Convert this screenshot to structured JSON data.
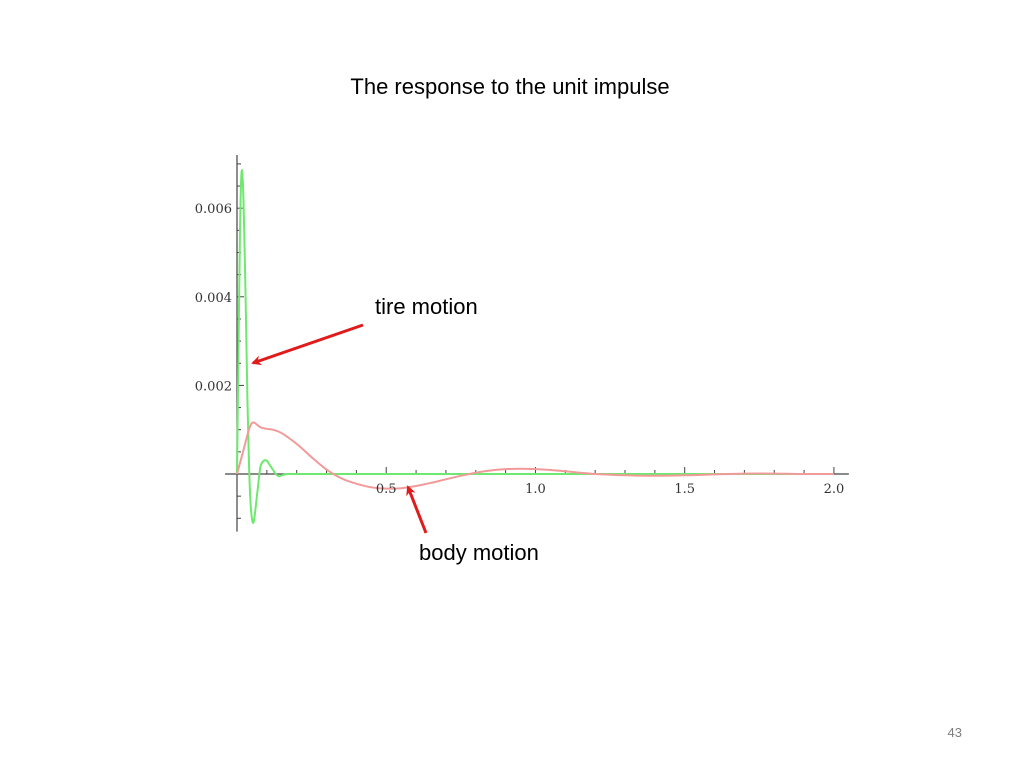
{
  "slide": {
    "title": "The response to the unit impulse",
    "page_number": "43"
  },
  "annotations": {
    "tire": "tire motion",
    "body": "body motion"
  },
  "chart_data": {
    "type": "line",
    "title": "",
    "xlabel": "",
    "ylabel": "",
    "xlim": [
      0,
      2.05
    ],
    "ylim": [
      -0.0013,
      0.0072
    ],
    "x_ticks": [
      {
        "value": 0.5,
        "label": "0.5"
      },
      {
        "value": 1.0,
        "label": "1.0"
      },
      {
        "value": 1.5,
        "label": "1.5"
      },
      {
        "value": 2.0,
        "label": "2.0"
      }
    ],
    "y_ticks": [
      {
        "value": 0.002,
        "label": "0.002"
      },
      {
        "value": 0.004,
        "label": "0.004"
      },
      {
        "value": 0.006,
        "label": "0.006"
      }
    ],
    "grid": false,
    "legend": "none",
    "series": [
      {
        "color": "#6fe86f",
        "x": [
          0,
          0.005,
          0.01,
          0.015,
          0.02,
          0.025,
          0.03,
          0.035,
          0.04,
          0.045,
          0.05,
          0.055,
          0.06,
          0.065,
          0.07,
          0.075,
          0.08,
          0.09,
          0.1,
          0.11,
          0.12,
          0.13,
          0.14,
          0.15,
          0.17,
          0.2,
          0.25,
          0.3,
          0.4,
          0.6,
          1.0,
          1.5,
          2.0
        ],
        "values": [
          0,
          0.0028,
          0.0055,
          0.0068,
          0.0065,
          0.0052,
          0.0035,
          0.0017,
          0.0003,
          -0.0006,
          -0.001,
          -0.0011,
          -0.0009,
          -0.0006,
          -0.0003,
          0.0,
          0.0002,
          0.0003,
          0.0003,
          0.0002,
          0.0001,
          0.0,
          -5e-05,
          -3e-05,
          0.0,
          0.0,
          0.0,
          0.0,
          0.0,
          0.0,
          0.0,
          0.0,
          0.0
        ]
      },
      {
        "color": "#f29a9a",
        "x": [
          0,
          0.02,
          0.04,
          0.05,
          0.06,
          0.08,
          0.1,
          0.12,
          0.15,
          0.2,
          0.25,
          0.3,
          0.35,
          0.4,
          0.45,
          0.5,
          0.55,
          0.6,
          0.65,
          0.7,
          0.75,
          0.8,
          0.85,
          0.9,
          0.95,
          1.0,
          1.05,
          1.1,
          1.15,
          1.2,
          1.3,
          1.4,
          1.5,
          1.6,
          1.7,
          1.8,
          1.9,
          2.0
        ],
        "values": [
          0,
          0.0005,
          0.001,
          0.00115,
          0.00115,
          0.00105,
          0.00102,
          0.001,
          0.00092,
          0.00068,
          0.00038,
          0.0001,
          -0.0001,
          -0.00022,
          -0.0003,
          -0.00033,
          -0.00032,
          -0.00027,
          -0.0002,
          -0.00012,
          -4e-05,
          3e-05,
          8e-05,
          0.00011,
          0.00012,
          0.00011,
          9e-05,
          6e-05,
          3e-05,
          0.0,
          -3e-05,
          -4e-05,
          -3e-05,
          -1e-05,
          1e-05,
          1e-05,
          0.0,
          0.0
        ]
      }
    ]
  }
}
